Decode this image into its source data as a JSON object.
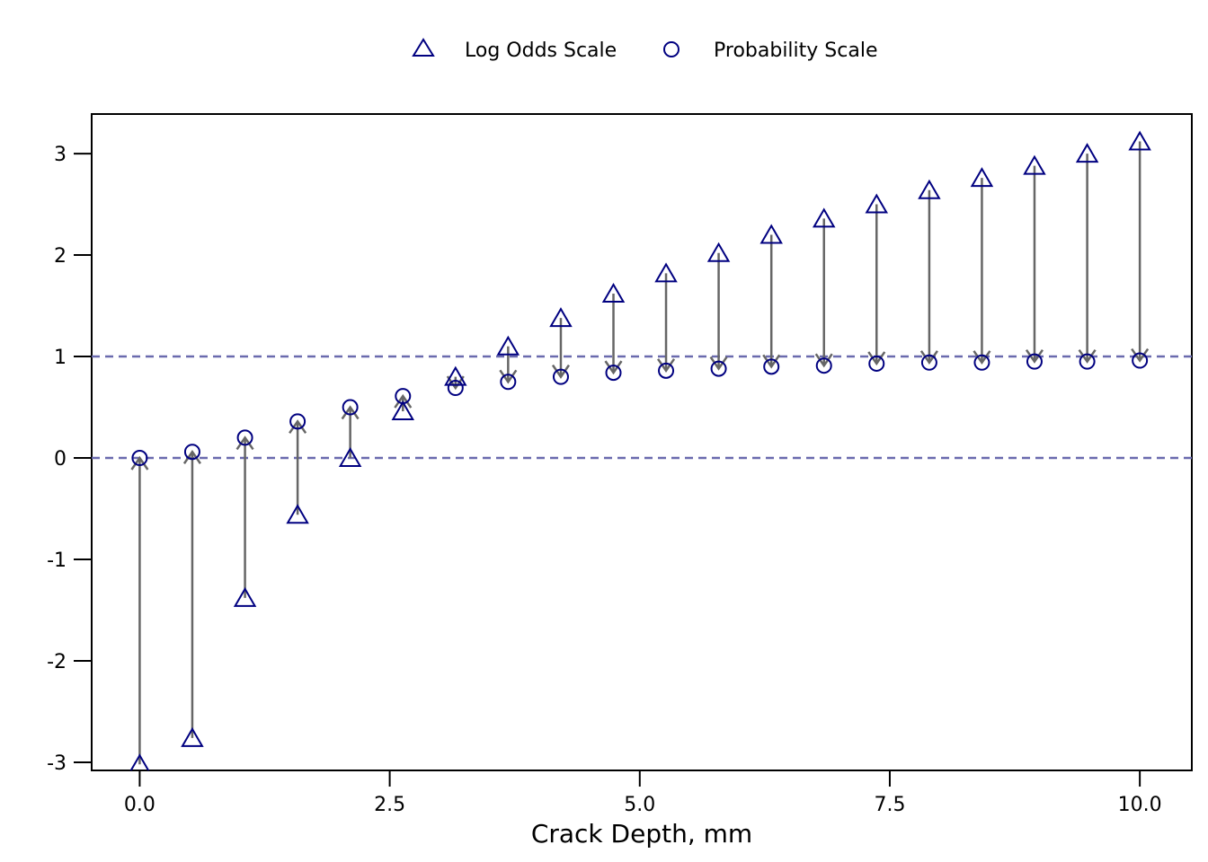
{
  "chart_data": {
    "type": "scatter",
    "title": "",
    "xlabel": "Crack Depth, mm",
    "ylabel": "",
    "xlim": [
      -0.48,
      10.52
    ],
    "ylim": [
      -3.08,
      3.39
    ],
    "xticks": [
      0.0,
      2.5,
      5.0,
      7.5,
      10.0
    ],
    "xtick_labels": [
      "0.0",
      "2.5",
      "5.0",
      "7.5",
      "10.0"
    ],
    "yticks": [
      -3,
      -2,
      -1,
      0,
      1,
      2,
      3
    ],
    "ytick_labels": [
      "-3",
      "-2",
      "-1",
      "0",
      "1",
      "2",
      "3"
    ],
    "reference_lines": [
      0,
      1
    ],
    "grid": false,
    "legend_position": "top-center",
    "colors": {
      "marker": "#000080",
      "arrow": "#666666",
      "reference_line": "#6a6aae",
      "axis": "#000000"
    },
    "x": [
      0.0,
      0.526,
      1.053,
      1.579,
      2.105,
      2.632,
      3.158,
      3.684,
      4.211,
      4.737,
      5.263,
      5.789,
      6.316,
      6.842,
      7.368,
      7.895,
      8.421,
      8.947,
      9.474,
      10.0
    ],
    "series": [
      {
        "name": "Log Odds Scale",
        "marker": "triangle",
        "values": [
          -3.02,
          -2.76,
          -1.38,
          -0.56,
          0.0,
          0.46,
          0.8,
          1.1,
          1.38,
          1.62,
          1.82,
          2.02,
          2.2,
          2.36,
          2.5,
          2.64,
          2.76,
          2.88,
          3.0,
          3.12
        ]
      },
      {
        "name": "Probability Scale",
        "marker": "circle",
        "values": [
          0.0,
          0.06,
          0.2,
          0.36,
          0.5,
          0.61,
          0.69,
          0.75,
          0.8,
          0.84,
          0.86,
          0.88,
          0.9,
          0.91,
          0.93,
          0.94,
          0.94,
          0.95,
          0.95,
          0.96
        ]
      }
    ]
  }
}
